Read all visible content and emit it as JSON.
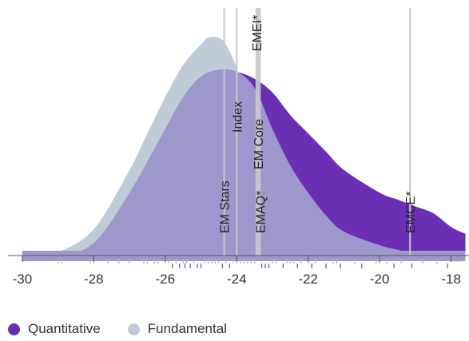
{
  "chart_data": {
    "type": "area",
    "title": "",
    "xlabel": "",
    "ylabel": "",
    "xlim": [
      -30.4,
      -17.5
    ],
    "x_ticks": [
      -30,
      -28,
      -26,
      -24,
      -22,
      -20,
      -18
    ],
    "x_tick_labels": [
      "-30",
      "-28",
      "-26",
      "-24",
      "-22",
      "-20",
      "-18"
    ],
    "y_axis_visible": false,
    "grid": false,
    "colors": {
      "quantitative": "#6a2fb5",
      "fundamental": "#bfccd8",
      "overlap": "#9d97cb",
      "ref_line": "#c8c8c8",
      "axis": "#555555"
    },
    "series": [
      {
        "name": "Quantitative",
        "x": [
          -30,
          -29,
          -28,
          -27,
          -26,
          -25.5,
          -25,
          -24.5,
          -24,
          -23.5,
          -23,
          -22.5,
          -22,
          -21.5,
          -21,
          -20,
          -19.5,
          -19,
          -18.5,
          -18,
          -17.6
        ],
        "y_upper": [
          0.0,
          0.02,
          0.08,
          0.3,
          0.58,
          0.72,
          0.81,
          0.84,
          0.83,
          0.8,
          0.74,
          0.64,
          0.56,
          0.48,
          0.4,
          0.3,
          0.27,
          0.24,
          0.21,
          0.15,
          0.12
        ],
        "y_lower": [
          0.0,
          0.02,
          0.08,
          0.3,
          0.58,
          0.72,
          0.81,
          0.84,
          0.83,
          0.76,
          0.58,
          0.42,
          0.3,
          0.2,
          0.13,
          0.07,
          0.05,
          0.03,
          0.01,
          0.0,
          0.0
        ]
      },
      {
        "name": "Fundamental",
        "x": [
          -30,
          -29,
          -28,
          -27,
          -26.5,
          -26,
          -25.5,
          -25,
          -24.8,
          -24.5,
          -24.3,
          -24,
          -23.5,
          -23,
          -22.5,
          -22,
          -21.5,
          -21,
          -20,
          -19,
          -18,
          -17.6
        ],
        "y": [
          0.0,
          0.04,
          0.14,
          0.4,
          0.56,
          0.72,
          0.86,
          0.95,
          0.98,
          0.98,
          0.95,
          0.85,
          0.65,
          0.48,
          0.34,
          0.24,
          0.16,
          0.1,
          0.04,
          0.01,
          0.0,
          0.0
        ]
      }
    ],
    "reference_lines": [
      {
        "label": "EM Stars",
        "x": -24.35
      },
      {
        "label": "Index",
        "x": -24.0
      },
      {
        "label": "EMEI*",
        "x": -23.45
      },
      {
        "label": "EM Core",
        "x": -23.4
      },
      {
        "label": "EMAQ*",
        "x": -23.35
      },
      {
        "label": "EMCE*",
        "x": -19.15
      }
    ],
    "rug": {
      "quantitative": [
        -25.8,
        -25.6,
        -25.45,
        -25.3,
        -25.1,
        -25.0,
        -24.4,
        -24.2,
        -23.3,
        -23.2,
        -23.1,
        -22.7,
        -22.3,
        -21.9,
        -21.5,
        -21.1,
        -20.5,
        -19.6,
        -19.1,
        -18.1
      ],
      "fundamental": [
        -29.0,
        -28.9,
        -28.1,
        -28.0,
        -27.6,
        -27.3,
        -27.0,
        -26.6,
        -26.5,
        -26.3,
        -26.2,
        -26.0,
        -25.9,
        -25.7,
        -25.5,
        -25.4,
        -25.2,
        -24.9,
        -24.8,
        -24.7,
        -24.6,
        -24.5,
        -24.3,
        -24.1,
        -24.0,
        -23.9,
        -23.8,
        -23.7,
        -23.6,
        -23.5,
        -23.0,
        -22.9,
        -22.6,
        -22.5,
        -22.4,
        -22.2,
        -22.0,
        -21.8,
        -21.3,
        -21.2,
        -20.7,
        -20.1,
        -20.0,
        -19.8,
        -19.4,
        -18.8,
        -18.4
      ]
    },
    "legend": {
      "placement": "bottom-left",
      "items": [
        "Quantitative",
        "Fundamental"
      ]
    }
  }
}
